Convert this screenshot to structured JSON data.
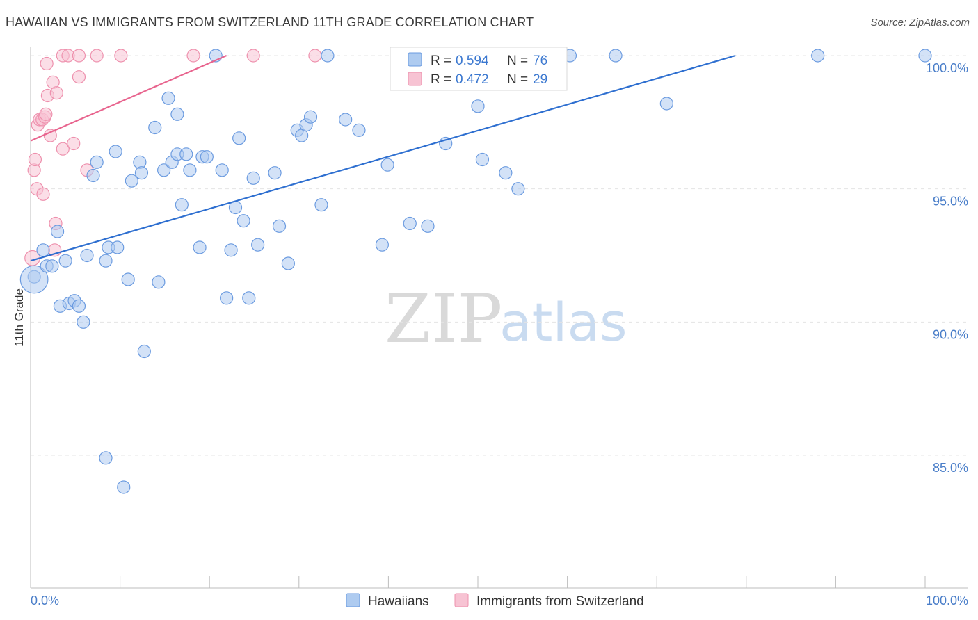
{
  "header": {
    "title": "HAWAIIAN VS IMMIGRANTS FROM SWITZERLAND 11TH GRADE CORRELATION CHART",
    "source": "Source: ZipAtlas.com"
  },
  "watermark": {
    "zip": "ZIP",
    "atlas": "atlas"
  },
  "legend": {
    "r_label": "R =",
    "n_label": "N =",
    "series": [
      {
        "name": "Hawaiians",
        "r": "0.594",
        "n": "76"
      },
      {
        "name": "Immigrants from Switzerland",
        "r": "0.472",
        "n": "29"
      }
    ]
  },
  "colors": {
    "hawaiians_fill": "#aecbf0",
    "hawaiians_stroke": "#6b9be0",
    "hawaiians_line": "#2e6fd0",
    "swiss_fill": "#f7c3d3",
    "swiss_stroke": "#ee90ad",
    "swiss_line": "#e8648e"
  },
  "chart_data": {
    "type": "scatter",
    "title": "HAWAIIAN VS IMMIGRANTS FROM SWITZERLAND 11TH GRADE CORRELATION CHART",
    "xlabel": "",
    "ylabel": "11th Grade",
    "xlim": [
      0,
      100
    ],
    "ylim": [
      80,
      100.4
    ],
    "x_tick_labels": [
      "0.0%",
      "100.0%"
    ],
    "y_ticks": [
      85,
      90,
      95,
      100
    ],
    "y_tick_labels": [
      "85.0%",
      "90.0%",
      "95.0%",
      "100.0%"
    ],
    "grid": true,
    "legend_position": "top-center",
    "series": [
      {
        "name": "Hawaiians",
        "trend": {
          "x": [
            0,
            78.8
          ],
          "y": [
            92.3,
            100.0
          ]
        },
        "points": [
          {
            "x": 0.4,
            "y": 91.7,
            "s": 1
          },
          {
            "x": 0.4,
            "y": 91.6,
            "s": 2.2
          },
          {
            "x": 1.4,
            "y": 92.7,
            "s": 1
          },
          {
            "x": 1.8,
            "y": 92.1,
            "s": 1
          },
          {
            "x": 2.4,
            "y": 92.1,
            "s": 1
          },
          {
            "x": 3.0,
            "y": 93.4,
            "s": 1
          },
          {
            "x": 3.9,
            "y": 92.3,
            "s": 1
          },
          {
            "x": 3.3,
            "y": 90.6,
            "s": 1
          },
          {
            "x": 4.3,
            "y": 90.7,
            "s": 1
          },
          {
            "x": 4.9,
            "y": 90.8,
            "s": 1
          },
          {
            "x": 5.4,
            "y": 90.6,
            "s": 1
          },
          {
            "x": 5.9,
            "y": 90.0,
            "s": 1
          },
          {
            "x": 6.3,
            "y": 92.5,
            "s": 1
          },
          {
            "x": 7.0,
            "y": 95.5,
            "s": 1
          },
          {
            "x": 7.4,
            "y": 96.0,
            "s": 1
          },
          {
            "x": 8.4,
            "y": 84.9,
            "s": 1
          },
          {
            "x": 8.4,
            "y": 92.3,
            "s": 1
          },
          {
            "x": 8.7,
            "y": 92.8,
            "s": 1
          },
          {
            "x": 9.7,
            "y": 92.8,
            "s": 1
          },
          {
            "x": 9.5,
            "y": 96.4,
            "s": 1
          },
          {
            "x": 10.4,
            "y": 83.8,
            "s": 1
          },
          {
            "x": 10.9,
            "y": 91.6,
            "s": 1
          },
          {
            "x": 11.3,
            "y": 95.3,
            "s": 1
          },
          {
            "x": 12.2,
            "y": 96.0,
            "s": 1
          },
          {
            "x": 12.4,
            "y": 95.6,
            "s": 1
          },
          {
            "x": 12.7,
            "y": 88.9,
            "s": 1
          },
          {
            "x": 13.9,
            "y": 97.3,
            "s": 1
          },
          {
            "x": 14.3,
            "y": 91.5,
            "s": 1
          },
          {
            "x": 14.9,
            "y": 95.7,
            "s": 1
          },
          {
            "x": 15.4,
            "y": 98.4,
            "s": 1
          },
          {
            "x": 15.8,
            "y": 96.0,
            "s": 1
          },
          {
            "x": 16.4,
            "y": 96.3,
            "s": 1
          },
          {
            "x": 16.4,
            "y": 97.8,
            "s": 1
          },
          {
            "x": 16.9,
            "y": 94.4,
            "s": 1
          },
          {
            "x": 17.4,
            "y": 96.3,
            "s": 1
          },
          {
            "x": 17.8,
            "y": 95.7,
            "s": 1
          },
          {
            "x": 18.9,
            "y": 92.8,
            "s": 1
          },
          {
            "x": 19.2,
            "y": 96.2,
            "s": 1
          },
          {
            "x": 19.7,
            "y": 96.2,
            "s": 1
          },
          {
            "x": 20.7,
            "y": 100.0,
            "s": 1
          },
          {
            "x": 21.4,
            "y": 95.7,
            "s": 1
          },
          {
            "x": 21.9,
            "y": 90.9,
            "s": 1
          },
          {
            "x": 22.4,
            "y": 92.7,
            "s": 1
          },
          {
            "x": 22.9,
            "y": 94.3,
            "s": 1
          },
          {
            "x": 23.3,
            "y": 96.9,
            "s": 1
          },
          {
            "x": 23.8,
            "y": 93.8,
            "s": 1
          },
          {
            "x": 24.4,
            "y": 90.9,
            "s": 1
          },
          {
            "x": 24.9,
            "y": 95.4,
            "s": 1
          },
          {
            "x": 25.4,
            "y": 92.9,
            "s": 1
          },
          {
            "x": 27.3,
            "y": 95.6,
            "s": 1
          },
          {
            "x": 27.8,
            "y": 93.6,
            "s": 1
          },
          {
            "x": 28.8,
            "y": 92.2,
            "s": 1
          },
          {
            "x": 29.8,
            "y": 97.2,
            "s": 1
          },
          {
            "x": 30.3,
            "y": 97.0,
            "s": 1
          },
          {
            "x": 30.8,
            "y": 97.4,
            "s": 1
          },
          {
            "x": 31.3,
            "y": 97.7,
            "s": 1
          },
          {
            "x": 32.5,
            "y": 94.4,
            "s": 1
          },
          {
            "x": 33.2,
            "y": 100.0,
            "s": 1
          },
          {
            "x": 35.2,
            "y": 97.6,
            "s": 1
          },
          {
            "x": 36.7,
            "y": 97.2,
            "s": 1
          },
          {
            "x": 39.3,
            "y": 92.9,
            "s": 1
          },
          {
            "x": 39.9,
            "y": 95.9,
            "s": 1
          },
          {
            "x": 42.4,
            "y": 93.7,
            "s": 1
          },
          {
            "x": 44.4,
            "y": 93.6,
            "s": 1
          },
          {
            "x": 46.4,
            "y": 96.7,
            "s": 1
          },
          {
            "x": 50.0,
            "y": 98.1,
            "s": 1
          },
          {
            "x": 50.5,
            "y": 96.1,
            "s": 1
          },
          {
            "x": 53.1,
            "y": 95.6,
            "s": 1
          },
          {
            "x": 54.5,
            "y": 95.0,
            "s": 1
          },
          {
            "x": 60.3,
            "y": 100.0,
            "s": 1
          },
          {
            "x": 65.4,
            "y": 100.0,
            "s": 1
          },
          {
            "x": 71.1,
            "y": 98.2,
            "s": 1
          },
          {
            "x": 88.0,
            "y": 100.0,
            "s": 1
          },
          {
            "x": 100.0,
            "y": 100.0,
            "s": 1
          }
        ]
      },
      {
        "name": "Immigrants from Switzerland",
        "trend": {
          "x": [
            0,
            21.9
          ],
          "y": [
            96.8,
            100.0
          ]
        },
        "points": [
          {
            "x": 0.2,
            "y": 92.4,
            "s": 1.2
          },
          {
            "x": 0.4,
            "y": 95.7,
            "s": 1
          },
          {
            "x": 0.5,
            "y": 96.1,
            "s": 1
          },
          {
            "x": 0.7,
            "y": 95.0,
            "s": 1
          },
          {
            "x": 0.8,
            "y": 97.4,
            "s": 1
          },
          {
            "x": 1.0,
            "y": 97.6,
            "s": 1
          },
          {
            "x": 1.3,
            "y": 97.6,
            "s": 1
          },
          {
            "x": 1.4,
            "y": 94.8,
            "s": 1
          },
          {
            "x": 1.6,
            "y": 97.7,
            "s": 1
          },
          {
            "x": 1.7,
            "y": 97.8,
            "s": 1
          },
          {
            "x": 1.8,
            "y": 99.7,
            "s": 1
          },
          {
            "x": 1.9,
            "y": 98.5,
            "s": 1
          },
          {
            "x": 2.2,
            "y": 97.0,
            "s": 1
          },
          {
            "x": 2.5,
            "y": 99.0,
            "s": 1
          },
          {
            "x": 2.7,
            "y": 92.7,
            "s": 1
          },
          {
            "x": 2.8,
            "y": 93.7,
            "s": 1
          },
          {
            "x": 2.9,
            "y": 98.6,
            "s": 1
          },
          {
            "x": 3.6,
            "y": 96.5,
            "s": 1
          },
          {
            "x": 3.6,
            "y": 100.0,
            "s": 1
          },
          {
            "x": 4.2,
            "y": 100.0,
            "s": 1
          },
          {
            "x": 4.8,
            "y": 96.7,
            "s": 1
          },
          {
            "x": 5.4,
            "y": 99.2,
            "s": 1
          },
          {
            "x": 5.4,
            "y": 100.0,
            "s": 1
          },
          {
            "x": 6.3,
            "y": 95.7,
            "s": 1
          },
          {
            "x": 7.4,
            "y": 100.0,
            "s": 1
          },
          {
            "x": 10.1,
            "y": 100.0,
            "s": 1
          },
          {
            "x": 18.2,
            "y": 100.0,
            "s": 1
          },
          {
            "x": 24.9,
            "y": 100.0,
            "s": 1
          },
          {
            "x": 31.8,
            "y": 100.0,
            "s": 1
          }
        ]
      }
    ]
  }
}
